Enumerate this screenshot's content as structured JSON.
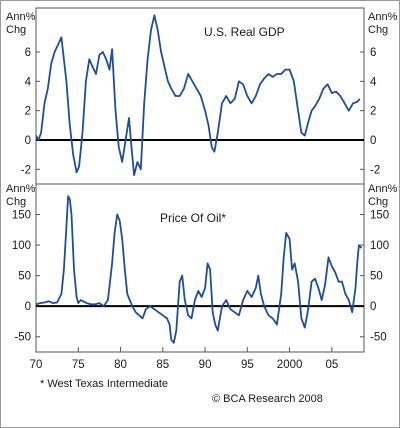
{
  "colors": {
    "line": "#1f4e96",
    "zero": "#000000",
    "frame": "#555555"
  },
  "x_tick_labels": [
    "70",
    "75",
    "80",
    "85",
    "90",
    "95",
    "2000",
    "05"
  ],
  "footnote": "* West Texas Intermediate",
  "credit": "© BCA Research 2008",
  "chart_data": [
    {
      "type": "line",
      "title": "U.S. Real GDP",
      "unit_label": [
        "Ann%",
        "Chg"
      ],
      "xlim": [
        1970,
        2008.8
      ],
      "ylim": [
        -3,
        9
      ],
      "yticks": [
        -2,
        0,
        2,
        4,
        6
      ],
      "grid": false,
      "series": [
        {
          "x": [
            1970.0,
            1970.3,
            1970.6,
            1971.0,
            1971.4,
            1971.8,
            1972.2,
            1972.6,
            1973.0,
            1973.3,
            1973.6,
            1974.0,
            1974.4,
            1974.8,
            1975.1,
            1975.5,
            1975.9,
            1976.3,
            1976.7,
            1977.1,
            1977.5,
            1977.9,
            1978.3,
            1978.7,
            1979.0,
            1979.4,
            1979.8,
            1980.2,
            1980.6,
            1981.0,
            1981.3,
            1981.6,
            1982.0,
            1982.4,
            1982.8,
            1983.2,
            1983.6,
            1984.0,
            1984.4,
            1984.8,
            1985.2,
            1985.6,
            1986.0,
            1986.5,
            1987.0,
            1987.5,
            1988.0,
            1988.5,
            1989.0,
            1989.5,
            1990.0,
            1990.4,
            1990.8,
            1991.1,
            1991.5,
            1992.0,
            1992.5,
            1993.0,
            1993.5,
            1994.0,
            1994.5,
            1995.0,
            1995.5,
            1996.0,
            1996.5,
            1997.0,
            1997.5,
            1998.0,
            1998.5,
            1999.0,
            1999.5,
            2000.0,
            2000.5,
            2001.0,
            2001.4,
            2001.8,
            2002.2,
            2002.6,
            2003.0,
            2003.5,
            2004.0,
            2004.5,
            2005.0,
            2005.5,
            2006.0,
            2006.5,
            2007.0,
            2007.5,
            2008.0,
            2008.3
          ],
          "values": [
            0.3,
            0.0,
            0.5,
            2.5,
            3.5,
            5.2,
            6.0,
            6.5,
            7.0,
            5.5,
            4.0,
            1.0,
            -1.0,
            -2.2,
            -1.8,
            0.5,
            4.0,
            5.5,
            5.0,
            4.5,
            5.8,
            6.0,
            5.5,
            4.8,
            6.2,
            2.0,
            -0.5,
            -1.5,
            0.0,
            1.5,
            -0.5,
            -2.4,
            -1.5,
            -2.0,
            2.5,
            5.5,
            7.5,
            8.5,
            7.5,
            6.0,
            5.0,
            4.0,
            3.5,
            3.0,
            3.0,
            3.5,
            4.5,
            4.0,
            3.5,
            3.0,
            2.0,
            1.0,
            -0.5,
            -0.8,
            0.5,
            2.5,
            3.0,
            2.5,
            2.8,
            4.0,
            3.8,
            3.0,
            2.5,
            3.0,
            3.8,
            4.2,
            4.5,
            4.3,
            4.5,
            4.5,
            4.8,
            4.8,
            4.0,
            2.0,
            0.5,
            0.3,
            1.2,
            2.0,
            2.3,
            2.8,
            3.5,
            3.8,
            3.2,
            3.3,
            3.0,
            2.5,
            2.0,
            2.5,
            2.6,
            2.8
          ],
          "color": "#1f4e96"
        }
      ]
    },
    {
      "type": "line",
      "title": "Price Of Oil*",
      "unit_label": [
        "Ann%",
        "Chg"
      ],
      "xlim": [
        1970,
        2008.8
      ],
      "ylim": [
        -75,
        200
      ],
      "yticks": [
        -50,
        0,
        50,
        100,
        150
      ],
      "grid": false,
      "series": [
        {
          "x": [
            1970.0,
            1970.5,
            1971.0,
            1971.5,
            1972.0,
            1972.5,
            1973.0,
            1973.3,
            1973.6,
            1973.8,
            1974.0,
            1974.2,
            1974.5,
            1974.8,
            1975.0,
            1975.3,
            1975.6,
            1976.0,
            1976.5,
            1977.0,
            1977.5,
            1978.0,
            1978.5,
            1979.0,
            1979.3,
            1979.6,
            1979.9,
            1980.2,
            1980.5,
            1980.8,
            1981.1,
            1981.4,
            1981.8,
            1982.2,
            1982.6,
            1983.0,
            1983.5,
            1984.0,
            1984.5,
            1985.0,
            1985.5,
            1985.8,
            1986.0,
            1986.3,
            1986.6,
            1987.0,
            1987.3,
            1987.6,
            1988.0,
            1988.4,
            1988.8,
            1989.2,
            1989.6,
            1990.0,
            1990.3,
            1990.6,
            1990.9,
            1991.2,
            1991.5,
            1992.0,
            1992.5,
            1993.0,
            1993.5,
            1994.0,
            1994.5,
            1995.0,
            1995.5,
            1996.0,
            1996.3,
            1996.6,
            1997.0,
            1997.5,
            1998.0,
            1998.5,
            1999.0,
            1999.3,
            1999.6,
            2000.0,
            2000.3,
            2000.6,
            2001.0,
            2001.4,
            2001.8,
            2002.2,
            2002.6,
            2003.0,
            2003.4,
            2003.8,
            2004.2,
            2004.6,
            2005.0,
            2005.4,
            2005.8,
            2006.2,
            2006.6,
            2007.0,
            2007.4,
            2007.8,
            2008.0,
            2008.2,
            2008.5
          ],
          "values": [
            3,
            5,
            6,
            8,
            5,
            6,
            20,
            60,
            130,
            180,
            175,
            150,
            60,
            15,
            5,
            10,
            8,
            5,
            3,
            3,
            5,
            0,
            10,
            70,
            120,
            150,
            140,
            110,
            60,
            20,
            10,
            0,
            -10,
            -15,
            -20,
            -5,
            0,
            -5,
            -10,
            -15,
            -20,
            -30,
            -55,
            -60,
            -40,
            40,
            50,
            10,
            -15,
            -20,
            10,
            25,
            15,
            30,
            70,
            60,
            -10,
            -30,
            -40,
            0,
            10,
            -5,
            -10,
            -15,
            10,
            25,
            15,
            30,
            50,
            20,
            0,
            -15,
            -20,
            -30,
            20,
            80,
            120,
            110,
            60,
            70,
            40,
            -20,
            -35,
            -5,
            40,
            45,
            30,
            10,
            35,
            80,
            65,
            55,
            40,
            40,
            20,
            10,
            -10,
            30,
            70,
            100,
            95
          ],
          "color": "#1f4e96"
        }
      ]
    }
  ]
}
